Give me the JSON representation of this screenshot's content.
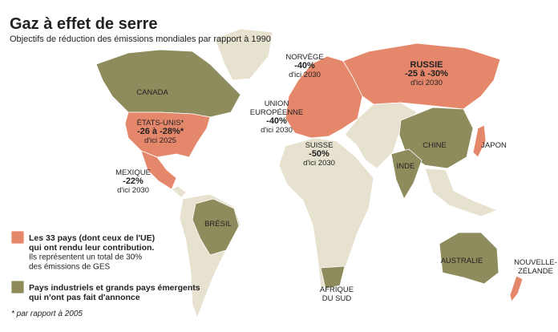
{
  "header": {
    "title": "Gaz à effet de serre",
    "subtitle": "Objectifs de réduction des émissions mondiales par rapport à 1990"
  },
  "labels": [
    {
      "lines": [
        "NORVÈGE",
        "-40%",
        "d'ici 2030"
      ]
    },
    {
      "lines": [
        "RUSSIE",
        "-25 à -30%",
        "d'ici 2030"
      ]
    },
    {
      "lines": [
        "CANADA"
      ]
    },
    {
      "lines": [
        "ÉTATS-UNIS*",
        "-26 à -28%*",
        "d'ici 2025"
      ]
    },
    {
      "lines": [
        "UNION",
        "EUROPÉENNE",
        "-40%",
        "d'ici 2030"
      ]
    },
    {
      "lines": [
        "SUISSE",
        "-50%",
        "d'ici 2030"
      ]
    },
    {
      "lines": [
        "CHINE"
      ]
    },
    {
      "lines": [
        "JAPON"
      ]
    },
    {
      "lines": [
        "INDE"
      ]
    },
    {
      "lines": [
        "MEXIQUE",
        "-22%",
        "d'ici 2030"
      ]
    },
    {
      "lines": [
        "BRÉSIL"
      ]
    },
    {
      "lines": [
        "AUSTRALIE"
      ]
    },
    {
      "lines": [
        "NOUVELLE-",
        "ZÉLANDE"
      ]
    },
    {
      "lines": [
        "AFRIQUE",
        "DU SUD"
      ]
    }
  ],
  "legend": [
    {
      "lines": [
        "Les 33 pays (dont ceux de l'UE)",
        "qui ont rendu leur contribution.",
        "Ils représentent un total de 30%",
        "des émissions de GES"
      ]
    },
    {
      "lines": [
        "Pays industriels et grands pays émergents",
        "qui n'ont pas fait d'annonce"
      ]
    }
  ],
  "footnote": "* par rapport à 2005"
}
